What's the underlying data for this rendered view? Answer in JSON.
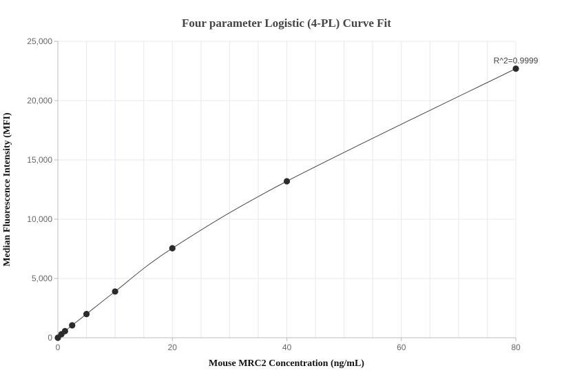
{
  "chart_data": {
    "type": "scatter",
    "title": "Four parameter Logistic (4-PL) Curve Fit",
    "xlabel": "Mouse MRC2 Concentration (ng/mL)",
    "ylabel": "Median Fluorescence Intensity (MFI)",
    "xlim": [
      0,
      80
    ],
    "ylim": [
      0,
      25000
    ],
    "x_ticks": [
      0,
      20,
      40,
      60,
      80
    ],
    "y_ticks": [
      0,
      5000,
      10000,
      15000,
      20000,
      25000
    ],
    "x_tick_labels": [
      "0",
      "20",
      "40",
      "60",
      "80"
    ],
    "y_tick_labels": [
      "0",
      "5,000",
      "10,000",
      "15,000",
      "20,000",
      "25,000"
    ],
    "grid": true,
    "annotation": "R^2=0.9999",
    "series": [
      {
        "points": {
          "x": [
            0,
            0.625,
            1.25,
            2.5,
            5,
            10,
            20,
            40,
            80
          ],
          "y": [
            0,
            300,
            560,
            1050,
            2000,
            3900,
            7550,
            13200,
            22700
          ]
        }
      }
    ],
    "colors": {
      "points": "#2b2b2b",
      "curve": "#333333",
      "grid": "#e8e8f0",
      "axis": "#bbbbbb"
    }
  }
}
